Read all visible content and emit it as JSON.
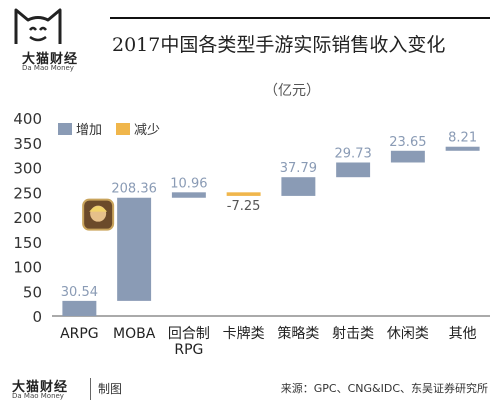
{
  "header": {
    "brand_name": "大猫财经",
    "brand_sub": "Da Mao Money",
    "title": "2017中国各类型手游实际销售收入变化"
  },
  "chart_data": {
    "type": "bar",
    "unit": "（亿元）",
    "categories": [
      "ARPG",
      "MOBA",
      "回合制RPG",
      "卡牌类",
      "策略类",
      "射击类",
      "休闲类",
      "其他"
    ],
    "series": [
      {
        "name": "增加",
        "color": "#8a9bb5"
      },
      {
        "name": "减少",
        "color": "#f0b64b"
      }
    ],
    "waterfall": [
      {
        "category": "ARPG",
        "start": 0,
        "end": 30.54,
        "label": "30.54",
        "kind": "增加"
      },
      {
        "category": "MOBA",
        "start": 30.54,
        "end": 238.9,
        "label": "208.36",
        "kind": "增加"
      },
      {
        "category": "回合制RPG",
        "start": 238.9,
        "end": 249.86,
        "label": "10.96",
        "kind": "增加"
      },
      {
        "category": "卡牌类",
        "start": 249.86,
        "end": 242.61,
        "label": "-7.25",
        "kind": "减少"
      },
      {
        "category": "策略类",
        "start": 242.61,
        "end": 280.4,
        "label": "37.79",
        "kind": "增加"
      },
      {
        "category": "射击类",
        "start": 280.4,
        "end": 310.13,
        "label": "29.73",
        "kind": "增加"
      },
      {
        "category": "休闲类",
        "start": 310.13,
        "end": 333.78,
        "label": "23.65",
        "kind": "增加"
      },
      {
        "category": "其他",
        "start": 333.78,
        "end": 341.99,
        "label": "8.21",
        "kind": "增加"
      }
    ],
    "ylim": [
      0,
      400
    ],
    "yticks": [
      0,
      50,
      100,
      150,
      200,
      250,
      300,
      350,
      400
    ],
    "grid": false,
    "legend_position": "top-left"
  },
  "footer": {
    "brand_name": "大猫财经",
    "brand_sub": "Da Mao Money",
    "made_label": "制图",
    "source": "来源：GPC、CNG&IDC、东吴证券研究所"
  }
}
